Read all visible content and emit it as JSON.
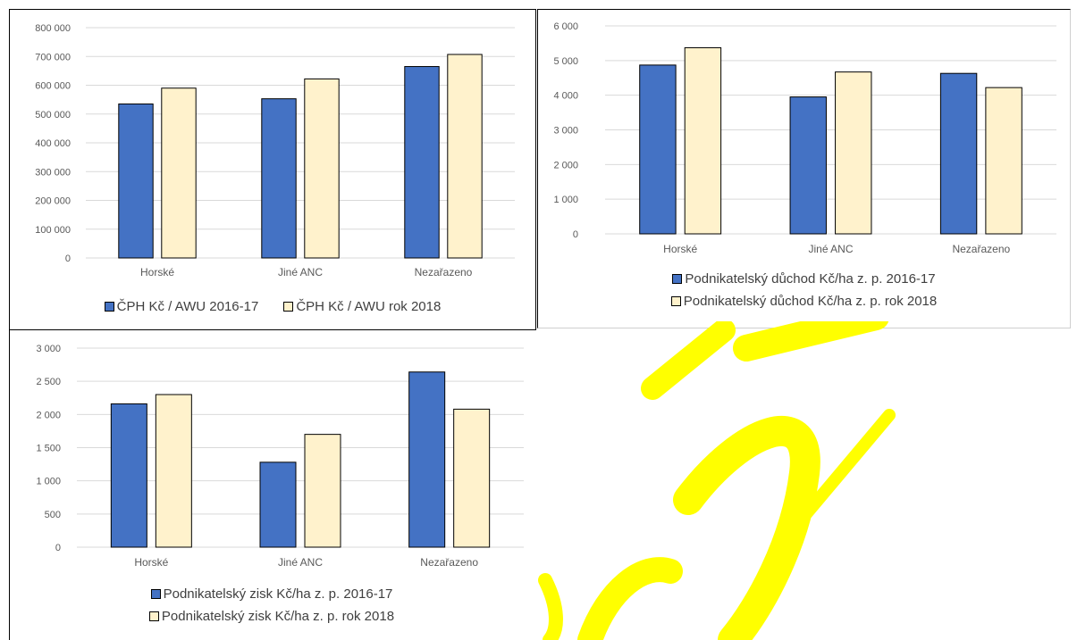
{
  "colors": {
    "series1": "#4472C4",
    "series2": "#FFF2CC",
    "bar_stroke": "#000000",
    "grid": "#D9D9D9",
    "watermark": "#FFFF00"
  },
  "chart_data": [
    {
      "type": "bar",
      "categories": [
        "Horské",
        "Jiné ANC",
        "Nezařazeno"
      ],
      "series": [
        {
          "name": "ČPH Kč / AWU 2016-17",
          "values": [
            535000,
            553000,
            665000
          ]
        },
        {
          "name": "ČPH Kč / AWU rok 2018",
          "values": [
            590000,
            622000,
            707000
          ]
        }
      ],
      "ylim": [
        0,
        800000
      ],
      "yticks": [
        0,
        100000,
        200000,
        300000,
        400000,
        500000,
        600000,
        700000,
        800000
      ],
      "ytick_labels": [
        "0",
        "100 000",
        "200 000",
        "300 000",
        "400 000",
        "500 000",
        "600 000",
        "700 000",
        "800 000"
      ],
      "grid": true,
      "legend": "bottom"
    },
    {
      "type": "bar",
      "categories": [
        "Horské",
        "Jiné ANC",
        "Nezařazeno"
      ],
      "series": [
        {
          "name": "Podnikatelský důchod Kč/ha z. p. 2016-17",
          "values": [
            4870,
            3950,
            4630
          ]
        },
        {
          "name": "Podnikatelský důchod Kč/ha z. p. rok 2018",
          "values": [
            5370,
            4670,
            4220
          ]
        }
      ],
      "ylim": [
        0,
        6000
      ],
      "yticks": [
        0,
        1000,
        2000,
        3000,
        4000,
        5000,
        6000
      ],
      "ytick_labels": [
        "0",
        "1 000",
        "2 000",
        "3 000",
        "4 000",
        "5 000",
        "6 000"
      ],
      "grid": true,
      "legend": "bottom"
    },
    {
      "type": "bar",
      "categories": [
        "Horské",
        "Jiné ANC",
        "Nezařazeno"
      ],
      "series": [
        {
          "name": "Podnikatelský zisk Kč/ha z. p. 2016-17",
          "values": [
            2160,
            1280,
            2640
          ]
        },
        {
          "name": "Podnikatelský zisk Kč/ha z. p. rok 2018",
          "values": [
            2300,
            1700,
            2080
          ]
        }
      ],
      "ylim": [
        0,
        3000
      ],
      "yticks": [
        0,
        500,
        1000,
        1500,
        2000,
        2500,
        3000
      ],
      "ytick_labels": [
        "0",
        "500",
        "1 000",
        "1 500",
        "2 000",
        "2 500",
        "3 000"
      ],
      "grid": true,
      "legend": "bottom"
    }
  ]
}
